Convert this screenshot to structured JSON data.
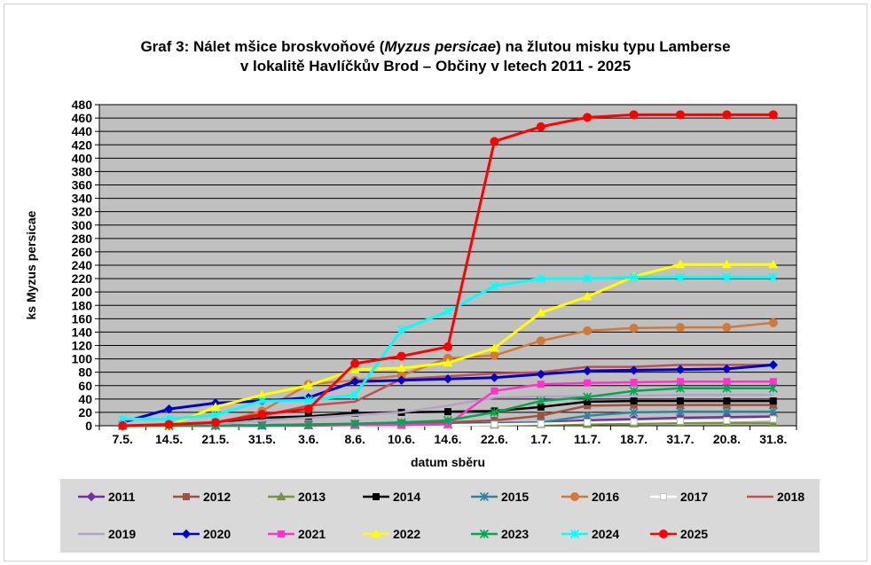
{
  "chart_data": {
    "type": "line",
    "title_prefix": "Graf 3: Nálet mšice broskvoňové (",
    "title_italic": "Myzus persicae",
    "title_suffix": ") na žlutou misku typu Lamberse",
    "title_line2": "v lokalitě Havlíčkův Brod – Občiny v letech 2011 - 2025",
    "xlabel": "datum sběru",
    "ylabel": "ks Myzus persicae",
    "ylim": [
      0,
      480
    ],
    "yticks": [
      0,
      20,
      40,
      60,
      80,
      100,
      120,
      140,
      160,
      180,
      200,
      220,
      240,
      260,
      280,
      300,
      320,
      340,
      360,
      380,
      400,
      420,
      440,
      460,
      480
    ],
    "categories": [
      "7.5.",
      "14.5.",
      "21.5.",
      "31.5.",
      "3.6.",
      "8.6.",
      "10.6.",
      "14.6.",
      "22.6.",
      "1.7.",
      "11.7.",
      "18.7.",
      "31.7.",
      "20.8.",
      "31.8."
    ],
    "grid": true,
    "legend_position": "bottom",
    "series": [
      {
        "name": "2011",
        "color": "#7030a0",
        "marker": "diamond",
        "values": [
          0,
          0,
          0,
          1,
          1,
          2,
          3,
          3,
          4,
          5,
          8,
          10,
          12,
          13,
          14
        ]
      },
      {
        "name": "2012",
        "color": "#a0503c",
        "marker": "square",
        "values": [
          0,
          0,
          1,
          1,
          2,
          3,
          4,
          5,
          8,
          15,
          30,
          31,
          31,
          31,
          31
        ]
      },
      {
        "name": "2013",
        "color": "#77933c",
        "marker": "triangle",
        "values": [
          0,
          0,
          0,
          0,
          0,
          0,
          1,
          1,
          1,
          2,
          2,
          3,
          4,
          4,
          4
        ]
      },
      {
        "name": "2014",
        "color": "#000000",
        "marker": "square",
        "values": [
          0,
          0,
          5,
          12,
          14,
          19,
          20,
          21,
          22,
          28,
          36,
          37,
          37,
          37,
          37
        ]
      },
      {
        "name": "2015",
        "color": "#31849b",
        "marker": "asterisk",
        "values": [
          0,
          0,
          0,
          1,
          1,
          1,
          2,
          2,
          3,
          5,
          15,
          20,
          21,
          21,
          21
        ]
      },
      {
        "name": "2016",
        "color": "#d07a38",
        "marker": "circle",
        "values": [
          0,
          0,
          2,
          22,
          62,
          68,
          75,
          101,
          105,
          127,
          142,
          146,
          147,
          147,
          154
        ]
      },
      {
        "name": "2017",
        "color": "#ffffff",
        "marker": "square",
        "values": [
          0,
          0,
          0,
          0,
          0,
          0,
          0,
          1,
          2,
          3,
          5,
          6,
          7,
          8,
          10
        ]
      },
      {
        "name": "2018",
        "color": "#c0504d",
        "marker": "none",
        "values": [
          0,
          0,
          5,
          15,
          30,
          36,
          70,
          74,
          78,
          80,
          88,
          88,
          91,
          91,
          91
        ]
      },
      {
        "name": "2019",
        "color": "#b3a2c7",
        "marker": "none",
        "values": [
          0,
          0,
          2,
          8,
          12,
          16,
          20,
          30,
          42,
          44,
          44,
          45,
          46,
          46,
          46
        ]
      },
      {
        "name": "2020",
        "color": "#0000cc",
        "marker": "diamond",
        "values": [
          5,
          25,
          34,
          37,
          42,
          66,
          68,
          70,
          72,
          77,
          82,
          83,
          84,
          85,
          91
        ]
      },
      {
        "name": "2021",
        "color": "#ff33cc",
        "marker": "square",
        "values": [
          0,
          0,
          0,
          0,
          0,
          1,
          1,
          2,
          52,
          62,
          64,
          65,
          66,
          66,
          66
        ]
      },
      {
        "name": "2022",
        "color": "#ffff00",
        "marker": "triangle",
        "values": [
          0,
          0,
          28,
          46,
          60,
          84,
          86,
          94,
          116,
          169,
          193,
          223,
          241,
          241,
          241
        ]
      },
      {
        "name": "2023",
        "color": "#00a650",
        "marker": "asterisk",
        "values": [
          0,
          0,
          0,
          0,
          1,
          3,
          5,
          8,
          20,
          37,
          43,
          52,
          56,
          56,
          56
        ]
      },
      {
        "name": "2024",
        "color": "#00ffff",
        "marker": "asterisk",
        "values": [
          10,
          10,
          16,
          37,
          38,
          46,
          143,
          171,
          209,
          220,
          220,
          222,
          222,
          222,
          222
        ]
      },
      {
        "name": "2025",
        "color": "#ff0000",
        "marker": "circle",
        "values": [
          0,
          2,
          5,
          17,
          25,
          93,
          104,
          118,
          425,
          447,
          461,
          465,
          465,
          465,
          465
        ]
      }
    ]
  }
}
